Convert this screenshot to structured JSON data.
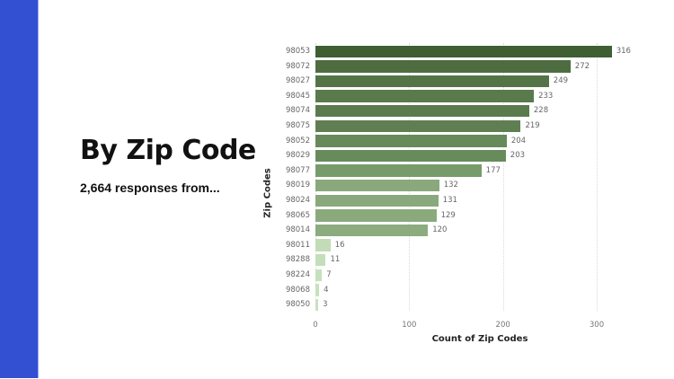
{
  "page": {
    "accent_strip_color": "#3450d2",
    "title": "By Zip Code",
    "subtitle": "2,664 responses from..."
  },
  "chart_data": {
    "type": "bar",
    "orientation": "horizontal",
    "title": "",
    "xlabel": "Count of Zip Codes",
    "ylabel": "Zip Codes",
    "xlim": [
      0,
      330
    ],
    "xticks": [
      0,
      100,
      200,
      300
    ],
    "grid": true,
    "data_labels": true,
    "legend": null,
    "categories": [
      "98053",
      "98072",
      "98027",
      "98045",
      "98074",
      "98075",
      "98052",
      "98029",
      "98077",
      "98019",
      "98024",
      "98065",
      "98014",
      "98011",
      "98288",
      "98224",
      "98068",
      "98050"
    ],
    "values": [
      316,
      272,
      249,
      233,
      228,
      219,
      204,
      203,
      177,
      132,
      131,
      129,
      120,
      16,
      11,
      7,
      4,
      3
    ],
    "colors": [
      "#3f5f33",
      "#4d6d41",
      "#547448",
      "#5a7a4e",
      "#5b7b4f",
      "#5f7f53",
      "#678a5b",
      "#688b5c",
      "#779b6a",
      "#89a97c",
      "#89a97c",
      "#8aaa7d",
      "#8cac7f",
      "#c2dcb7",
      "#c5deba",
      "#c7e0bc",
      "#c8e1bd",
      "#c9e2be"
    ]
  }
}
